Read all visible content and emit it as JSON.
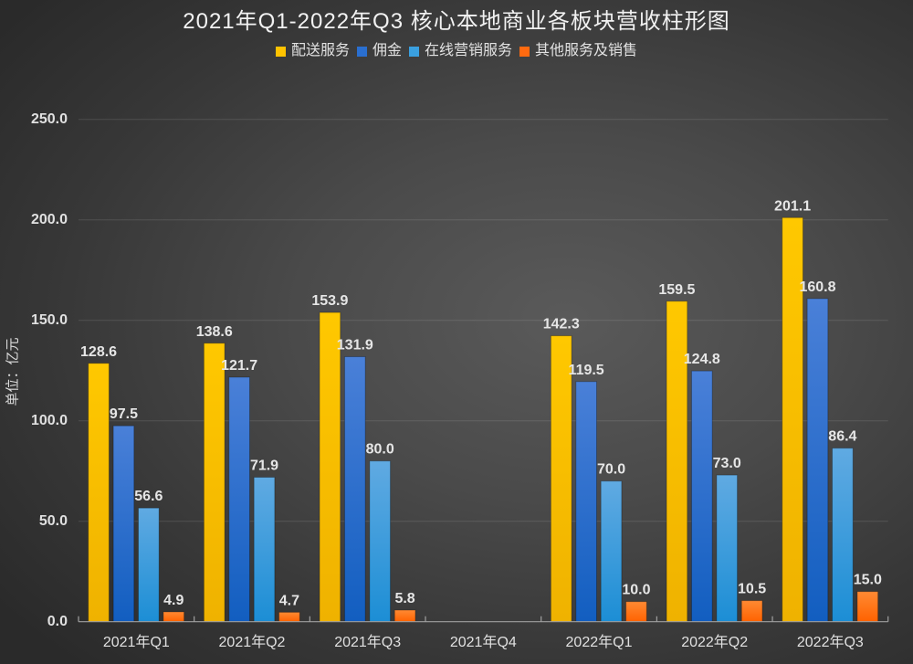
{
  "chart_data": {
    "type": "bar",
    "title": "2021年Q1-2022年Q3 核心本地商业各板块营收柱形图",
    "xlabel": "",
    "ylabel": "单位：亿元",
    "ylim": [
      0,
      250
    ],
    "yticks": [
      0,
      50,
      100,
      150,
      200,
      250
    ],
    "ytick_labels": [
      "0.0",
      "50.0",
      "100.0",
      "150.0",
      "200.0",
      "250.0"
    ],
    "grid": true,
    "legend": "top",
    "categories": [
      "2021年Q1",
      "2021年Q2",
      "2021年Q3",
      "2021年Q4",
      "2022年Q1",
      "2022年Q2",
      "2022年Q3"
    ],
    "series": [
      {
        "name": "配送服务",
        "color": "#ffc300",
        "color_top": "#ffc800",
        "color_bottom": "#efb200",
        "values": [
          128.6,
          138.6,
          153.9,
          null,
          142.3,
          159.5,
          201.1
        ],
        "labels": [
          "128.6",
          "138.6",
          "153.9",
          null,
          "142.3",
          "159.5",
          "201.1"
        ]
      },
      {
        "name": "佣金",
        "color": "#2a6fd0",
        "color_top": "#4a80d8",
        "color_bottom": "#125ec0",
        "values": [
          97.5,
          121.7,
          131.9,
          null,
          119.5,
          124.8,
          160.8
        ],
        "labels": [
          "97.5",
          "121.7",
          "131.9",
          null,
          "119.5",
          "124.8",
          "160.8"
        ]
      },
      {
        "name": "在线营销服务",
        "color": "#3aa0e0",
        "color_top": "#60aae2",
        "color_bottom": "#1c8ed5",
        "values": [
          56.6,
          71.9,
          80.0,
          null,
          70.0,
          73.0,
          86.4
        ],
        "labels": [
          "56.6",
          "71.9",
          "80.0",
          null,
          "70.0",
          "73.0",
          "86.4"
        ]
      },
      {
        "name": "其他服务及销售",
        "color": "#ff6a10",
        "color_top": "#ff8a33",
        "color_bottom": "#ff6200",
        "values": [
          4.9,
          4.7,
          5.8,
          null,
          10.0,
          10.5,
          15.0
        ],
        "labels": [
          "4.9",
          "4.7",
          "5.8",
          null,
          "10.0",
          "10.5",
          "15.0"
        ]
      }
    ]
  }
}
